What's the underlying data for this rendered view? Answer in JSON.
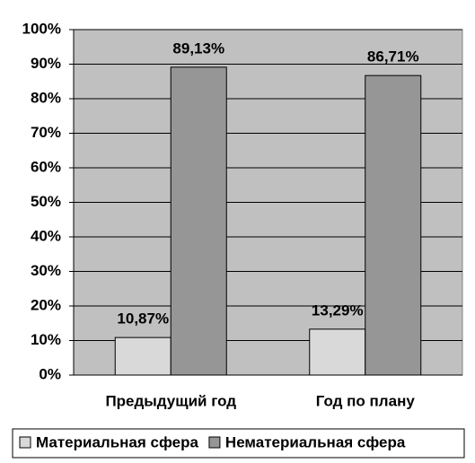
{
  "chart_data": {
    "type": "bar",
    "categories": [
      "Предыдущий год",
      "Год по плану"
    ],
    "series": [
      {
        "name": "Материальная сфера",
        "color": "#d9d9d9",
        "values": [
          10.87,
          13.29
        ],
        "value_labels": [
          "10,87%",
          "13,29%"
        ]
      },
      {
        "name": "Нематериальная сфера",
        "color": "#969696",
        "values": [
          89.13,
          86.71
        ],
        "value_labels": [
          "89,13%",
          "86,71%"
        ]
      }
    ],
    "ylim": [
      0,
      100
    ],
    "yticks": [
      {
        "value": 0,
        "label": "0%"
      },
      {
        "value": 10,
        "label": "10%"
      },
      {
        "value": 20,
        "label": "20%"
      },
      {
        "value": 30,
        "label": "30%"
      },
      {
        "value": 40,
        "label": "40%"
      },
      {
        "value": 50,
        "label": "50%"
      },
      {
        "value": 60,
        "label": "60%"
      },
      {
        "value": 70,
        "label": "70%"
      },
      {
        "value": 80,
        "label": "80%"
      },
      {
        "value": 90,
        "label": "90%"
      },
      {
        "value": 100,
        "label": "100%"
      }
    ],
    "grid": true,
    "plot_background": "#c0c0c0",
    "legend": "bottom"
  }
}
